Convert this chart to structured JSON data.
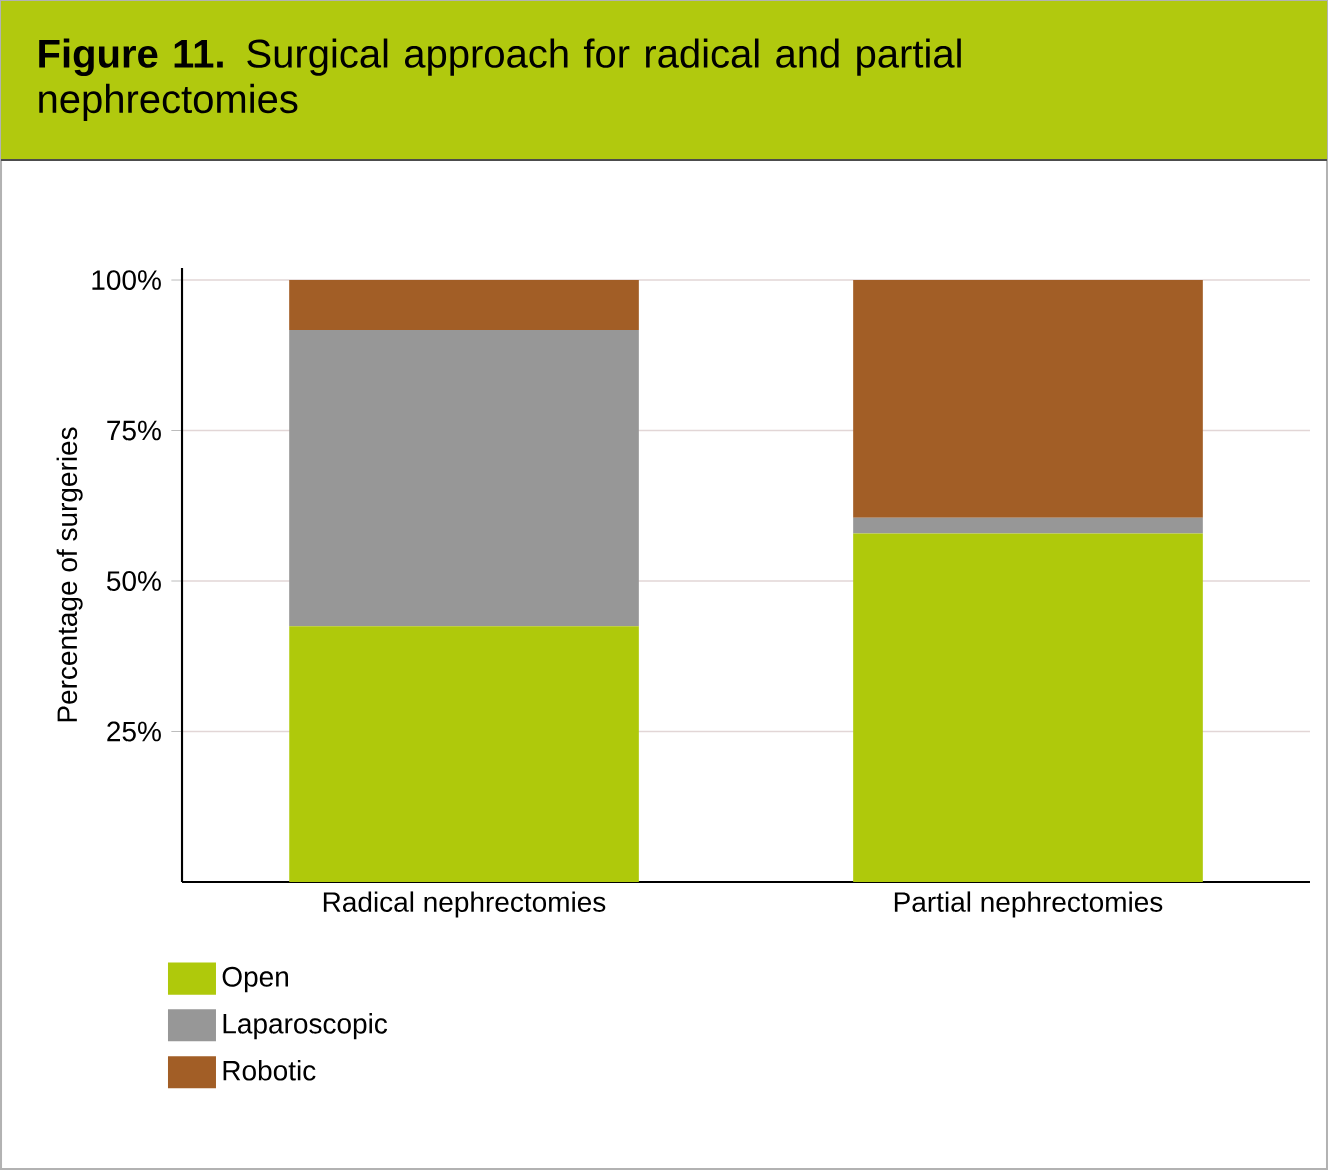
{
  "chart_data": {
    "type": "bar",
    "title": "**Figure 11.** Surgical approach for radical and partial nephrectomies",
    "ylabel": "Percentage of surgeries",
    "categories": [
      "Radical nephrectomies",
      "Partial nephrectomies"
    ],
    "stacked": true,
    "series": [
      {
        "name": "Open",
        "color": "#afc90b",
        "values": [
          42.5,
          57.9
        ]
      },
      {
        "name": "Laparoscopic",
        "color": "#979797",
        "values": [
          49.2,
          2.6
        ]
      },
      {
        "name": "Robotic",
        "color": "#a25e26",
        "values": [
          8.3,
          39.5
        ]
      }
    ],
    "ylim": [
      0,
      100
    ],
    "yticks": [
      {
        "value": 25,
        "label": "25%"
      },
      {
        "value": 50,
        "label": "50%"
      },
      {
        "value": 75,
        "label": "75%"
      },
      {
        "value": 100,
        "label": "100%"
      }
    ],
    "grid": "y",
    "legend": "bottom left"
  }
}
